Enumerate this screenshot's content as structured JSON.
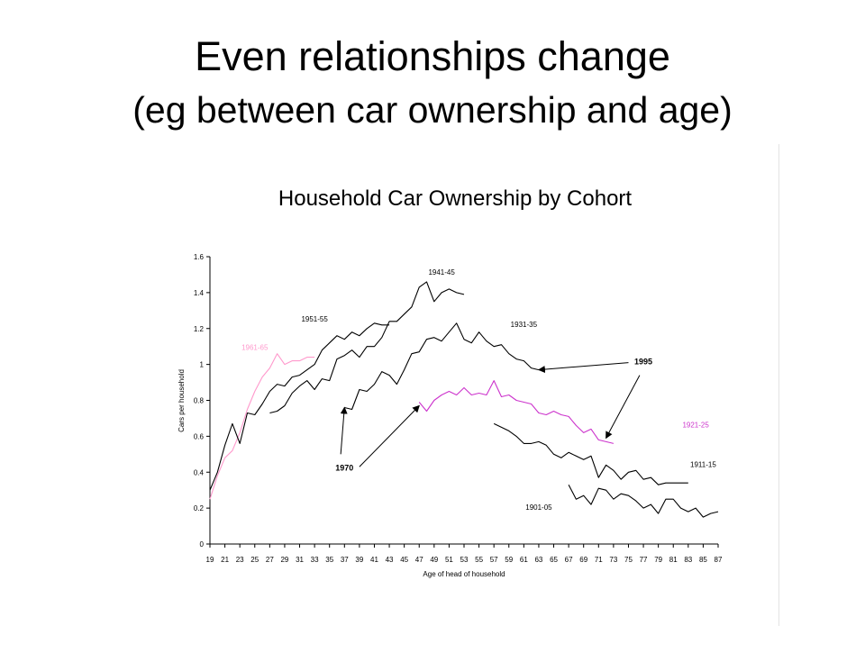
{
  "slide": {
    "title": "Even relationships change",
    "subtitle": "(eg between car ownership and age)"
  },
  "chart_data": {
    "type": "line",
    "title": "Household Car Ownership by Cohort",
    "xlabel": "Age of head of household",
    "ylabel": "Cars per household",
    "xlim": [
      19,
      87
    ],
    "ylim": [
      0,
      1.6
    ],
    "grid": false,
    "legend": "none",
    "x_ticks": [
      19,
      21,
      23,
      25,
      27,
      29,
      31,
      33,
      35,
      37,
      39,
      41,
      43,
      45,
      47,
      49,
      51,
      53,
      55,
      57,
      59,
      61,
      63,
      65,
      67,
      69,
      71,
      73,
      75,
      77,
      79,
      81,
      83,
      85,
      87
    ],
    "y_ticks": [
      0,
      0.2,
      0.4,
      0.6,
      0.8,
      1,
      1.2,
      1.4,
      1.6
    ],
    "series": [
      {
        "name": "1961-65",
        "color": "#ff99cc",
        "x": [
          19,
          20,
          21,
          22,
          23,
          24,
          25,
          26,
          27,
          28,
          29,
          30,
          31,
          32,
          33
        ],
        "y": [
          0.25,
          0.38,
          0.48,
          0.52,
          0.62,
          0.75,
          0.85,
          0.93,
          0.98,
          1.06,
          1.0,
          1.02,
          1.02,
          1.04,
          1.04
        ]
      },
      {
        "name": "1951-55",
        "color": "#000000",
        "x": [
          19,
          20,
          21,
          22,
          23,
          24,
          25,
          26,
          27,
          28,
          29,
          30,
          31,
          32,
          33,
          34,
          35,
          36,
          37,
          38,
          39,
          40,
          41,
          42,
          43
        ],
        "y": [
          0.3,
          0.4,
          0.55,
          0.67,
          0.56,
          0.73,
          0.72,
          0.78,
          0.85,
          0.89,
          0.88,
          0.93,
          0.94,
          0.97,
          1.0,
          1.08,
          1.12,
          1.16,
          1.14,
          1.18,
          1.16,
          1.2,
          1.23,
          1.22,
          1.22
        ]
      },
      {
        "name": "1941-45",
        "color": "#000000",
        "x": [
          27,
          28,
          29,
          30,
          31,
          32,
          33,
          34,
          35,
          36,
          37,
          38,
          39,
          40,
          41,
          42,
          43,
          44,
          45,
          46,
          47,
          48,
          49,
          50,
          51,
          52,
          53
        ],
        "y": [
          0.73,
          0.74,
          0.77,
          0.84,
          0.88,
          0.91,
          0.86,
          0.92,
          0.91,
          1.03,
          1.05,
          1.08,
          1.04,
          1.1,
          1.1,
          1.15,
          1.24,
          1.24,
          1.28,
          1.32,
          1.43,
          1.46,
          1.35,
          1.4,
          1.42,
          1.4,
          1.39
        ]
      },
      {
        "name": "1931-35",
        "color": "#000000",
        "x": [
          37,
          38,
          39,
          40,
          41,
          42,
          43,
          44,
          45,
          46,
          47,
          48,
          49,
          50,
          51,
          52,
          53,
          54,
          55,
          56,
          57,
          58,
          59,
          60,
          61,
          62,
          63
        ],
        "y": [
          0.76,
          0.75,
          0.86,
          0.85,
          0.89,
          0.96,
          0.94,
          0.89,
          0.97,
          1.06,
          1.07,
          1.14,
          1.15,
          1.13,
          1.18,
          1.23,
          1.14,
          1.12,
          1.18,
          1.13,
          1.1,
          1.11,
          1.06,
          1.03,
          1.02,
          0.98,
          0.97
        ]
      },
      {
        "name": "1921-25",
        "color": "#cc33cc",
        "x": [
          47,
          48,
          49,
          50,
          51,
          52,
          53,
          54,
          55,
          56,
          57,
          58,
          59,
          60,
          61,
          62,
          63,
          64,
          65,
          66,
          67,
          68,
          69,
          70,
          71,
          72,
          73
        ],
        "y": [
          0.79,
          0.74,
          0.8,
          0.83,
          0.85,
          0.83,
          0.87,
          0.83,
          0.84,
          0.83,
          0.91,
          0.82,
          0.83,
          0.8,
          0.79,
          0.78,
          0.73,
          0.72,
          0.74,
          0.72,
          0.71,
          0.66,
          0.62,
          0.64,
          0.58,
          0.57,
          0.56
        ]
      },
      {
        "name": "1911-15",
        "color": "#000000",
        "x": [
          57,
          58,
          59,
          60,
          61,
          62,
          63,
          64,
          65,
          66,
          67,
          68,
          69,
          70,
          71,
          72,
          73,
          74,
          75,
          76,
          77,
          78,
          79,
          80,
          81,
          82,
          83
        ],
        "y": [
          0.67,
          0.65,
          0.63,
          0.6,
          0.56,
          0.56,
          0.57,
          0.55,
          0.5,
          0.48,
          0.51,
          0.49,
          0.47,
          0.49,
          0.37,
          0.44,
          0.41,
          0.36,
          0.4,
          0.41,
          0.36,
          0.37,
          0.33,
          0.34,
          0.34,
          0.34,
          0.34
        ]
      },
      {
        "name": "1901-05",
        "color": "#000000",
        "x": [
          67,
          68,
          69,
          70,
          71,
          72,
          73,
          74,
          75,
          76,
          77,
          78,
          79,
          80,
          81,
          82,
          83,
          84,
          85,
          86,
          87
        ],
        "y": [
          0.33,
          0.25,
          0.27,
          0.22,
          0.31,
          0.3,
          0.25,
          0.28,
          0.27,
          0.24,
          0.2,
          0.22,
          0.17,
          0.25,
          0.25,
          0.2,
          0.18,
          0.2,
          0.15,
          0.17,
          0.18
        ]
      }
    ],
    "series_labels": [
      {
        "text": "1961-65",
        "x": 25,
        "y": 1.08,
        "color": "#ff99cc"
      },
      {
        "text": "1951-55",
        "x": 33,
        "y": 1.24,
        "color": "#000000"
      },
      {
        "text": "1941-45",
        "x": 50,
        "y": 1.5,
        "color": "#000000"
      },
      {
        "text": "1931-35",
        "x": 61,
        "y": 1.21,
        "color": "#000000"
      },
      {
        "text": "1921-25",
        "x": 84,
        "y": 0.65,
        "color": "#cc33cc"
      },
      {
        "text": "1911-15",
        "x": 85,
        "y": 0.43,
        "color": "#000000"
      },
      {
        "text": "1901-05",
        "x": 63,
        "y": 0.19,
        "color": "#000000"
      }
    ],
    "annotations": [
      {
        "text": "1995",
        "x": 77,
        "y": 1.0,
        "bold": true
      },
      {
        "text": "1970",
        "x": 37,
        "y": 0.41,
        "bold": true
      }
    ],
    "arrows": [
      {
        "from": [
          75,
          1.01
        ],
        "to": [
          63,
          0.97
        ]
      },
      {
        "from": [
          76.5,
          0.94
        ],
        "to": [
          72,
          0.59
        ]
      },
      {
        "from": [
          36.5,
          0.5
        ],
        "to": [
          37,
          0.76
        ]
      },
      {
        "from": [
          39,
          0.43
        ],
        "to": [
          47,
          0.77
        ]
      }
    ]
  }
}
